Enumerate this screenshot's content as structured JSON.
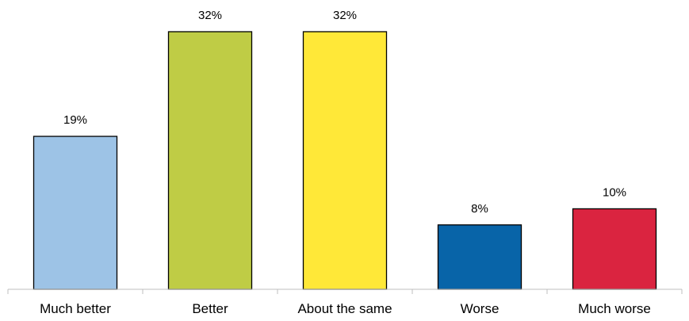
{
  "chart_data": {
    "type": "bar",
    "categories": [
      "Much better",
      "Better",
      "About the same",
      "Worse",
      "Much worse"
    ],
    "values": [
      19,
      32,
      32,
      8,
      10
    ],
    "value_labels": [
      "19%",
      "32%",
      "32%",
      "8%",
      "10%"
    ],
    "colors": [
      "#9dc3e6",
      "#bfcc45",
      "#ffe838",
      "#0864a8",
      "#da2440"
    ],
    "title": "",
    "xlabel": "",
    "ylabel": "",
    "ylim": [
      0,
      32
    ],
    "grid": false,
    "legend": "none"
  }
}
